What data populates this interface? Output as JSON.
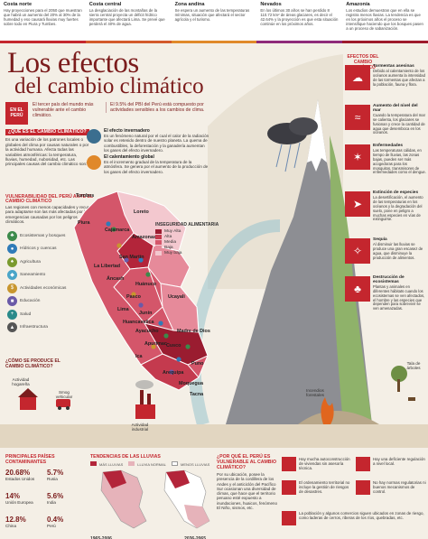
{
  "top": [
    {
      "title": "Costa norte",
      "text": "Hay proyecciones para el 2050 que muestran que habrá un aumento del 20% al 30% de la humedad y eso causará lluvias muy fuertes sobre todo en Piura y Tumbes."
    },
    {
      "title": "Costa central",
      "text": "La desglaciación de las montañas de la sierra central proyecta un déficit hídrico importante que afectará Lima. Se prevé que perderá el 40% de agua."
    },
    {
      "title": "Zona andina",
      "text": "Se espera un aumento de las temperaturas mínimas, situación que afectará el sector agrícola y el turismo."
    },
    {
      "title": "Nevados",
      "text": "En los últimos 30 años se han perdido 8 110.72 km² de áreas glaciares, es decir el 42.64% y la proyección es que esta situación continúe en los próximos años."
    },
    {
      "title": "Amazonía",
      "text": "Los estudios demuestran que en ella se registra menos lluvias. La tendencia es que en los próximos años el proceso se intensifique haciendo que los bosques pasen a un proceso de sabanización."
    }
  ],
  "title_line1": "Los efectos",
  "title_line2": "del cambio climático",
  "badge": "EN EL PERÚ",
  "intro1": "El tercer país del mundo más vulnerable ante el cambio climático.",
  "intro2": "El 9.5% del PBI del Perú está compuesto por actividades sensibles a los cambios de clima.",
  "what": {
    "head": "¿QUÉ ES EL CAMBIO CLIMÁTICO?",
    "text": "Es una variación de los patrones locales o globales del clima por causas naturales o por la actividad humana. Afecta todas las variables atmosféricas: la temperatura, lluvias, humedad, nubosidad, etc. Las principales causas del cambio climático son:"
  },
  "greenhouse": {
    "title": "El efecto invernadero",
    "text": "Es un fenómeno natural por el cual el calor de la radiación solar es retenido dentro de nuestro planeta. La quema de combustibles, la deforestación y la ganadería aumentan los gases del efecto invernadero."
  },
  "warming": {
    "title": "El calentamiento global",
    "text": "Es el incremento gradual de la temperatura de la atmósfera. Se genera por el aumento de la producción de los gases del efecto invernadero."
  },
  "vuln": {
    "head": "VULNERABILIDAD DEL PERÚ ANTE EL CAMBIO CLIMÁTICO",
    "text": "Las regiones con menos capacidades y recursos para adaptarse son las más afectadas por las emergencias causadas por los peligros climáticos.",
    "items": [
      "Ecosistemas y bosques",
      "Hídricos y cuencas",
      "Agricultura",
      "Saneamiento",
      "Actividades económicas",
      "Educación",
      "Salud",
      "Infraestructura"
    ]
  },
  "map_labels": [
    "Tumbes",
    "Loreto",
    "Piura",
    "Cajamarca",
    "Amazonas",
    "San Martín",
    "La Libertad",
    "Áncash",
    "Huánuco",
    "Pasco",
    "Lima",
    "Junín",
    "Ucayali",
    "Madre de Dios",
    "Cusco",
    "Apurímac",
    "Ayacucho",
    "Huancavelica",
    "Ica",
    "Puno",
    "Arequipa",
    "Moquegua",
    "Tacna"
  ],
  "security": {
    "title": "INSEGURIDAD ALIMENTARIA",
    "levels": [
      "Muy Alta",
      "Alta",
      "Media",
      "Baja",
      "Muy baja"
    ]
  },
  "effects": {
    "head": "EFECTOS DEL CAMBIO CLIMÁTICO",
    "items": [
      {
        "title": "Tormentas asesinas",
        "text": "Debido al calentamiento de los océanos aumenta la intensidad de las tormentas que afectan a la población, fauna y flora."
      },
      {
        "title": "Aumento del nivel del mar",
        "text": "Cuando la temperatura del mar se calienta, los glaciares se fusionan y crece la cantidad de agua que desemboca en los océanos."
      },
      {
        "title": "Enfermedades",
        "text": "Las temperaturas cálidas, en tiempo de lluvias, las zonas bajas, pueden ser más acogedoras para los mosquitos, transmisores de enfermedades como el dengue."
      },
      {
        "title": "Extinción de especies",
        "text": "La desertificación, el aumento de las temperaturas en los océanos y la degradación del suelo, pone en peligro a muchas especies en vías de extinguirse."
      },
      {
        "title": "Sequía",
        "text": "Al disminuir las lluvias se produce una gran escasez de agua, que disminuye la producción de alimentos."
      },
      {
        "title": "Destrucción de ecosistemas",
        "text": "Plantas y animales en diferentes hábitats cuando los ecosistemas se ven afectados, el hombre y las especies que dependen para sobrevivir se ven amenazadas."
      }
    ]
  },
  "how": {
    "head": "¿CÓMO SE PRODUCE EL CAMBIO CLIMÁTICO?",
    "acts": [
      "Actividad hogareña",
      "Smog vehicular",
      "Actividad industrial",
      "Incendios forestales",
      "Tala de árboles"
    ]
  },
  "polluters": {
    "head": "PRINCIPALES PAÍSES CONTAMINANTES",
    "rows": [
      {
        "pct": "20.68%",
        "name": "Estados Unidos"
      },
      {
        "pct": "5.7%",
        "name": "Rusia"
      },
      {
        "pct": "14%",
        "name": "Unión Europea"
      },
      {
        "pct": "5.6%",
        "name": "India"
      },
      {
        "pct": "12.8%",
        "name": "China"
      },
      {
        "pct": "0.4%",
        "name": "Perú"
      }
    ]
  },
  "rain": {
    "head": "TENDENCIAS DE LAS LLUVIAS",
    "legend": [
      "MÁS LLUVIAS",
      "LLUVIA NORMAL",
      "MENOS LLUVIAS"
    ],
    "periods": [
      "1965-2006",
      "2036-2065"
    ]
  },
  "why": {
    "head": "¿POR QUÉ EL PERÚ ES VULNERABLE AL CAMBIO CLIMÁTICO?",
    "text": "Por su ubicación, posee la presencia de la cordillera de los Andes y el anticiclón del Pacífico Sur ocasionan una diversidad de climas, que hace que el territorio peruano esté expuesto a inundaciones, huaicos, fenómeno El Niño, sismos, etc."
  },
  "factors": [
    {
      "a": "Hay mucha autoconstrucción de viviendas sin asesoría técnica.",
      "b": "Hay una deficiente regulación a nivel local."
    },
    {
      "a": "El ordenamiento territorial no incluye la gestión de riesgos de desastres.",
      "b": "No hay normas regulatorias ni buenos mecanismos de control."
    },
    {
      "a": "La población y algunos comercios siguen ubicados en zonas de riesgo, como laderas de cerros, riberas de los ríos, quebradas, etc.",
      "b": ""
    }
  ],
  "colors": {
    "accent": "#c4262e",
    "dark": "#7b1c1c",
    "bg": "#f4efe6"
  }
}
